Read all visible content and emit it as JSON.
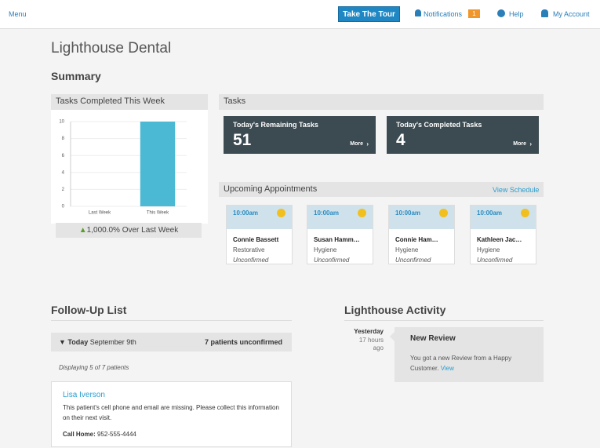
{
  "nav": {
    "menu": "Menu",
    "tour": "Take The Tour",
    "notifications": "Notifications",
    "notification_count": 1,
    "help": "Help",
    "account": "My Account"
  },
  "page_title": "Lighthouse Dental",
  "summary_title": "Summary",
  "chart_data": {
    "type": "bar",
    "title": "Tasks Completed This Week",
    "categories": [
      "Last Week",
      "This Week"
    ],
    "values": [
      0,
      10
    ],
    "color": "#4cb9d4",
    "ylim": [
      0,
      10
    ],
    "yticks": [
      0,
      2,
      4,
      6,
      8,
      10
    ],
    "grid": true,
    "footnote": "1,000.0% Over Last Week"
  },
  "tasks": {
    "title": "Tasks",
    "cards": [
      {
        "label": "Today's Remaining Tasks",
        "value": 51,
        "link": "More"
      },
      {
        "label": "Today's Completed Tasks",
        "value": 4,
        "link": "More"
      }
    ]
  },
  "appointments": {
    "title": "Upcoming Appointments",
    "link": "View Schedule",
    "items": [
      {
        "time": "10:00am",
        "name": "Connie Bassett",
        "type": "Restorative",
        "status": "Unconfirmed"
      },
      {
        "time": "10:00am",
        "name": "Susan Hamm…",
        "type": "Hygiene",
        "status": "Unconfirmed"
      },
      {
        "time": "10:00am",
        "name": "Connie Ham…",
        "type": "Hygiene",
        "status": "Unconfirmed"
      },
      {
        "time": "10:00am",
        "name": "Kathleen Jac…",
        "type": "Hygiene",
        "status": "Unconfirmed"
      }
    ]
  },
  "follow_up": {
    "title": "Follow-Up List",
    "day": "Today",
    "date": "September 9th",
    "unconfirmed": "7 patients unconfirmed",
    "displaying": "Displaying 5 of 7 patients",
    "patient": {
      "name": "Lisa Iverson",
      "note": "This patient's cell phone and email are missing. Please collect this information on their next visit.",
      "phone_label": "Call Home:",
      "phone": "952-555-4444"
    }
  },
  "activity": {
    "title": "Lighthouse Activity",
    "when": "Yesterday",
    "ago": "17 hours ago",
    "heading": "New Review",
    "text": "You got a new Review from a Happy Customer.",
    "link": "View"
  }
}
